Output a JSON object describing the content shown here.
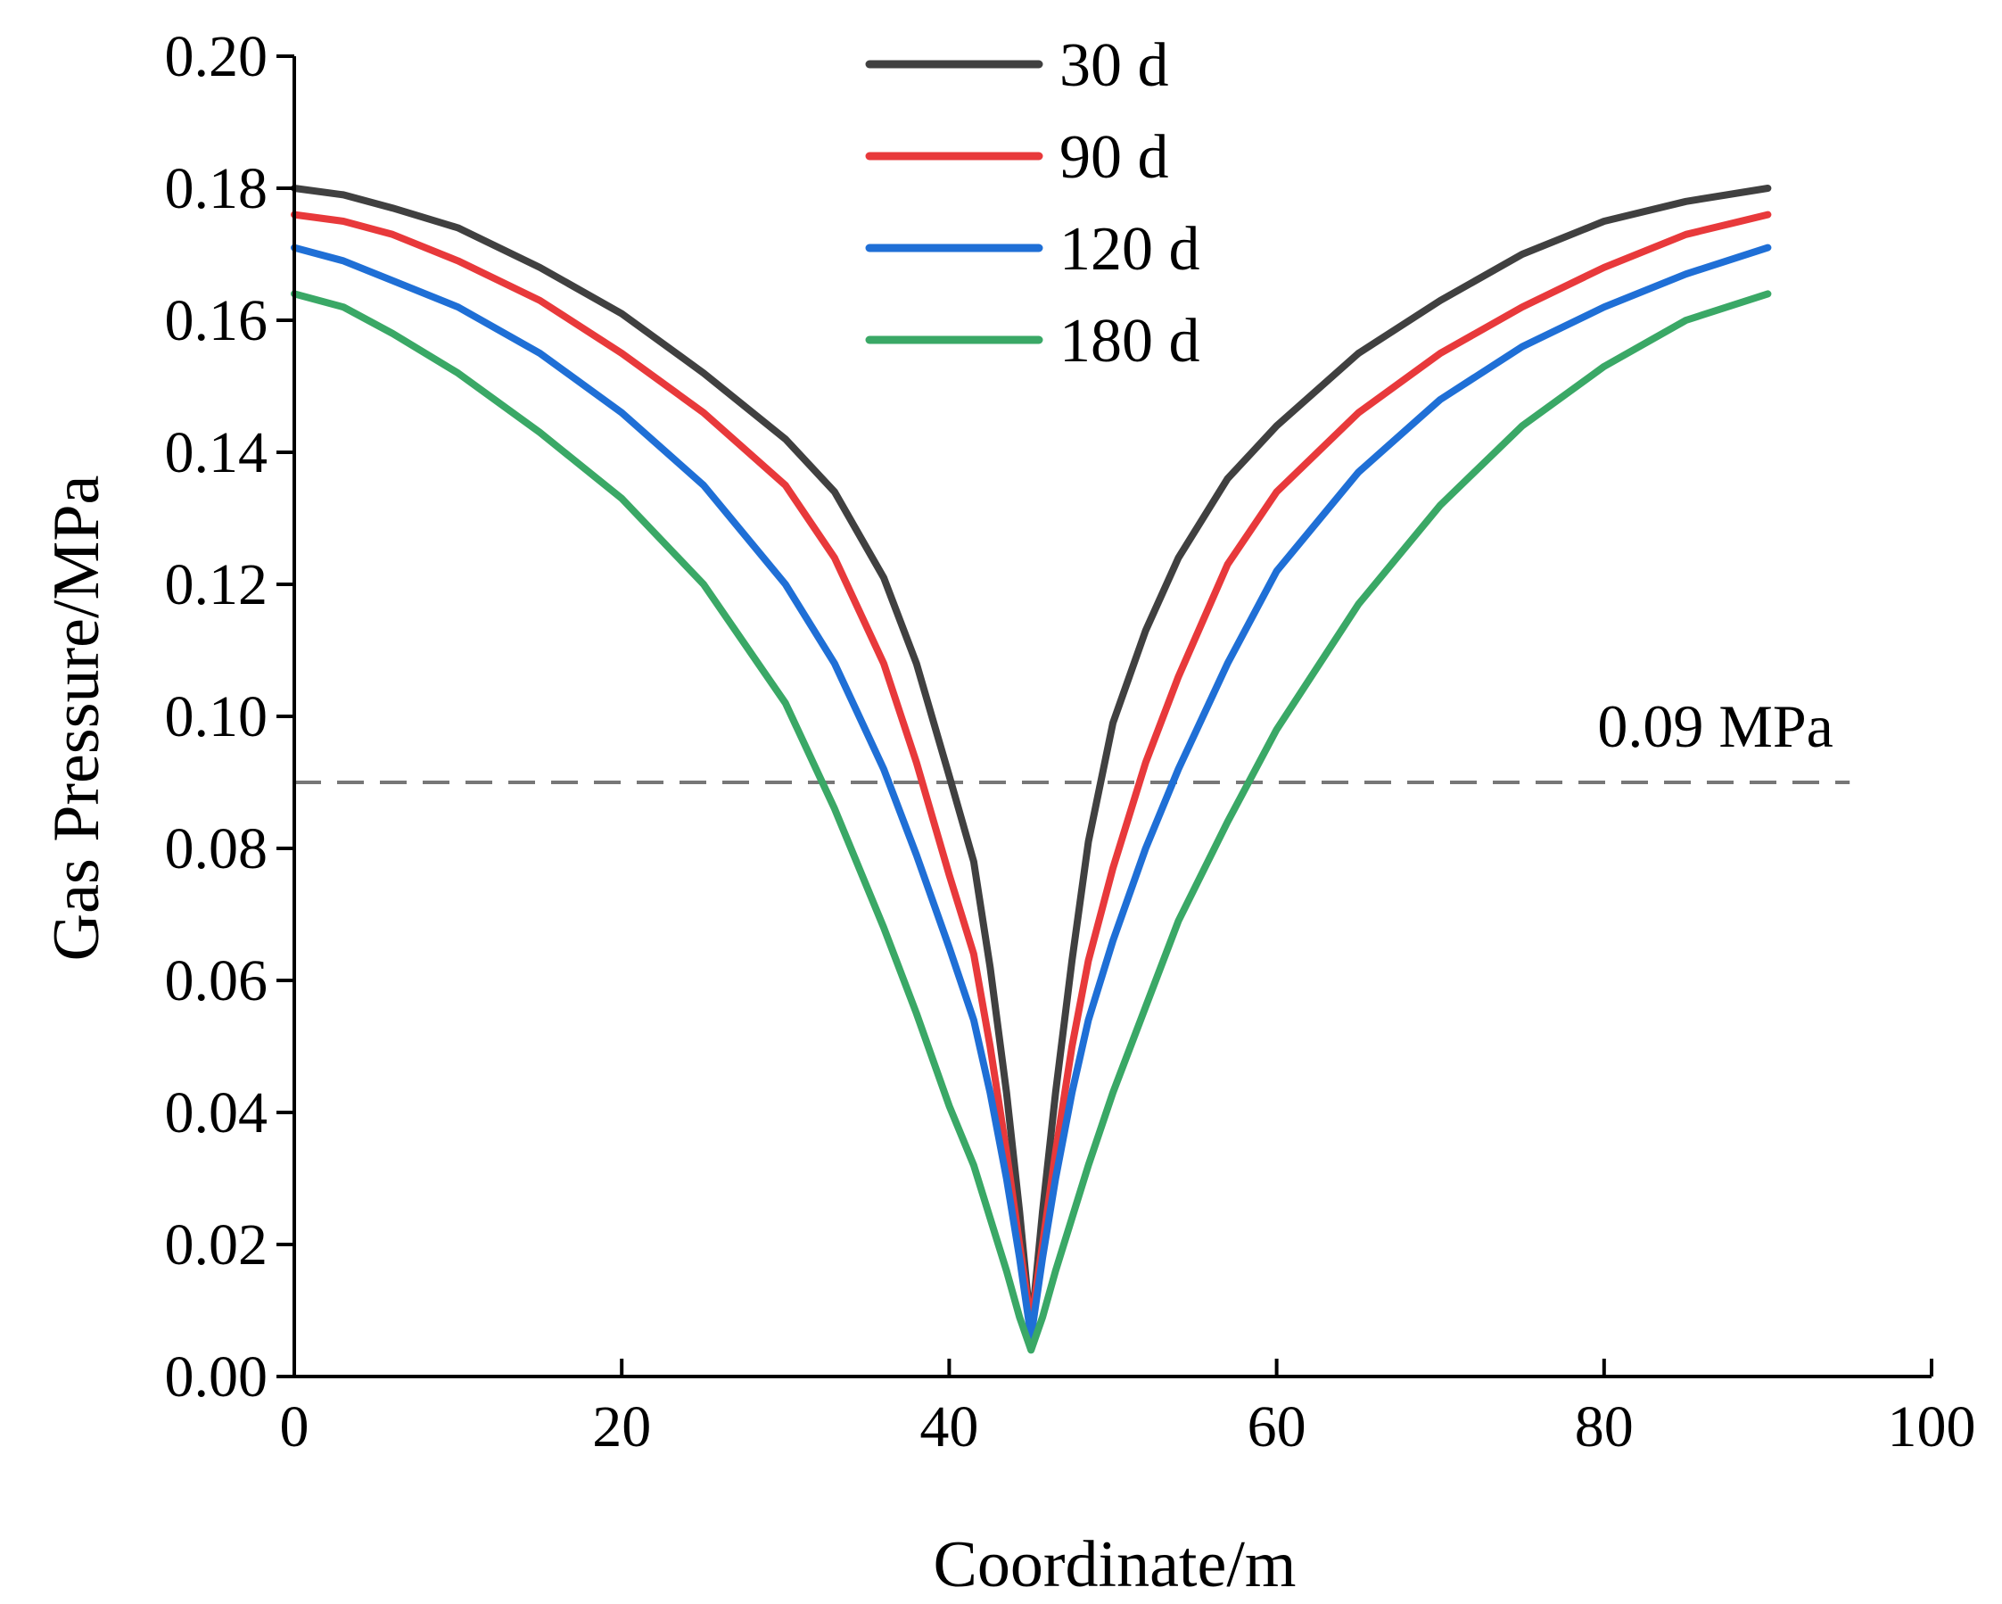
{
  "chart_data": {
    "type": "line",
    "title": "",
    "xlabel": "Coordinate/m",
    "ylabel": "Gas Pressure/MPa",
    "xlim": [
      0,
      100
    ],
    "ylim": [
      0,
      0.2
    ],
    "xticks": [
      0,
      20,
      40,
      60,
      80,
      100
    ],
    "xtick_labels": [
      "0",
      "20",
      "40",
      "60",
      "80",
      "100"
    ],
    "yticks": [
      0,
      0.02,
      0.04,
      0.06,
      0.08,
      0.1,
      0.12,
      0.14,
      0.16,
      0.18,
      0.2
    ],
    "ytick_labels": [
      "0.00",
      "0.02",
      "0.04",
      "0.06",
      "0.08",
      "0.10",
      "0.12",
      "0.14",
      "0.16",
      "0.18",
      "0.20"
    ],
    "legend_position": "top-center",
    "grid": false,
    "reference_line": {
      "y": 0.09,
      "label": "0.09 MPa",
      "color": "#777777",
      "x_range": [
        0,
        95
      ]
    },
    "series": [
      {
        "name": "30 d",
        "color": "#404040",
        "x": [
          0,
          3,
          6,
          10,
          15,
          20,
          25,
          30,
          33,
          36,
          38,
          40,
          41.5,
          42.5,
          43.5,
          44.3,
          45,
          45.7,
          46.5,
          47.5,
          48.5,
          50,
          52,
          54,
          57,
          60,
          65,
          70,
          75,
          80,
          85,
          90
        ],
        "values": [
          0.18,
          0.179,
          0.177,
          0.174,
          0.168,
          0.161,
          0.152,
          0.142,
          0.134,
          0.121,
          0.108,
          0.091,
          0.078,
          0.062,
          0.043,
          0.025,
          0.007,
          0.025,
          0.043,
          0.063,
          0.081,
          0.099,
          0.113,
          0.124,
          0.136,
          0.144,
          0.155,
          0.163,
          0.17,
          0.175,
          0.178,
          0.18
        ]
      },
      {
        "name": "90 d",
        "color": "#e8393b",
        "x": [
          0,
          3,
          6,
          10,
          15,
          20,
          25,
          30,
          33,
          36,
          38,
          40,
          41.5,
          42.5,
          43.5,
          44.3,
          45,
          45.7,
          46.5,
          47.5,
          48.5,
          50,
          52,
          54,
          57,
          60,
          65,
          70,
          75,
          80,
          85,
          90
        ],
        "values": [
          0.176,
          0.175,
          0.173,
          0.169,
          0.163,
          0.155,
          0.146,
          0.135,
          0.124,
          0.108,
          0.093,
          0.076,
          0.064,
          0.05,
          0.034,
          0.02,
          0.008,
          0.02,
          0.034,
          0.05,
          0.063,
          0.077,
          0.093,
          0.106,
          0.123,
          0.134,
          0.146,
          0.155,
          0.162,
          0.168,
          0.173,
          0.176
        ]
      },
      {
        "name": "120 d",
        "color": "#1f6fd6",
        "x": [
          0,
          3,
          6,
          10,
          15,
          20,
          25,
          30,
          33,
          36,
          38,
          40,
          41.5,
          42.5,
          43.5,
          44.3,
          45,
          45.7,
          46.5,
          47.5,
          48.5,
          50,
          52,
          54,
          57,
          60,
          65,
          70,
          75,
          80,
          85,
          90
        ],
        "values": [
          0.171,
          0.169,
          0.166,
          0.162,
          0.155,
          0.146,
          0.135,
          0.12,
          0.108,
          0.092,
          0.079,
          0.065,
          0.054,
          0.043,
          0.03,
          0.018,
          0.006,
          0.018,
          0.03,
          0.043,
          0.054,
          0.066,
          0.08,
          0.092,
          0.108,
          0.122,
          0.137,
          0.148,
          0.156,
          0.162,
          0.167,
          0.171
        ]
      },
      {
        "name": "180 d",
        "color": "#3aa866",
        "x": [
          0,
          3,
          6,
          10,
          15,
          20,
          25,
          30,
          33,
          36,
          38,
          40,
          41.5,
          42.5,
          43.5,
          44.3,
          45,
          45.7,
          46.5,
          47.5,
          48.5,
          50,
          52,
          54,
          57,
          60,
          65,
          70,
          75,
          80,
          85,
          90
        ],
        "values": [
          0.164,
          0.162,
          0.158,
          0.152,
          0.143,
          0.133,
          0.12,
          0.102,
          0.086,
          0.068,
          0.055,
          0.041,
          0.032,
          0.024,
          0.016,
          0.009,
          0.004,
          0.009,
          0.016,
          0.024,
          0.032,
          0.043,
          0.056,
          0.069,
          0.084,
          0.098,
          0.117,
          0.132,
          0.144,
          0.153,
          0.16,
          0.164
        ]
      }
    ]
  }
}
